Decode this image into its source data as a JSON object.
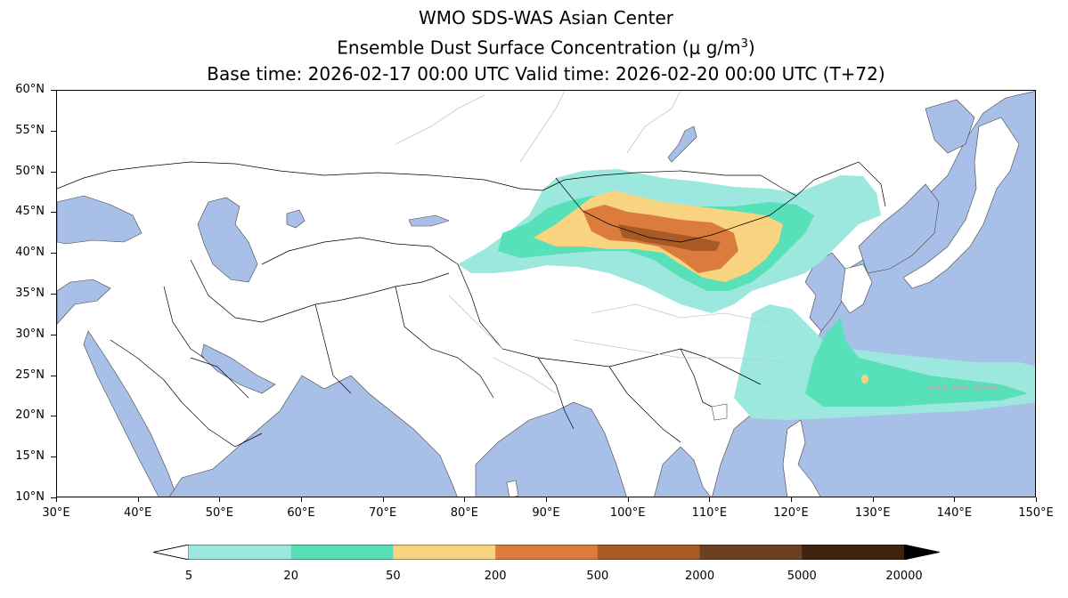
{
  "title": {
    "line1": "WMO SDS-WAS Asian Center",
    "line2_prefix": "Ensemble Dust Surface Concentration (",
    "line2_unit_mu": "μ",
    "line2_unit_rest": " g/m",
    "line2_unit_sup": "3",
    "line2_suffix": ")",
    "line3": "Base time: 2026-02-17 00:00 UTC Valid time: 2026-02-20 00:00 UTC (T+72)"
  },
  "map": {
    "lon_range": [
      30,
      150
    ],
    "lat_range": [
      10,
      60
    ],
    "lat_ticks": [
      "60°N",
      "55°N",
      "50°N",
      "45°N",
      "40°N",
      "35°N",
      "30°N",
      "25°N",
      "20°N",
      "15°N",
      "10°N"
    ],
    "lon_ticks": [
      "30°E",
      "40°E",
      "50°E",
      "60°E",
      "70°E",
      "80°E",
      "90°E",
      "100°E",
      "110°E",
      "120°E",
      "130°E",
      "140°E",
      "150°E"
    ],
    "colors": {
      "ocean": "#a8bfe8",
      "land": "#ffffff",
      "border": "#000000",
      "river": "#b8c8e0"
    }
  },
  "colorbar": {
    "labels": [
      "5",
      "20",
      "50",
      "200",
      "500",
      "2000",
      "5000",
      "20000"
    ],
    "colors": [
      "#9ce8de",
      "#58e0b8",
      "#f8d480",
      "#dc7c3c",
      "#a85a24",
      "#6c4020",
      "#3c2410"
    ],
    "under_color": "#ffffff",
    "over_color": "#000000"
  }
}
